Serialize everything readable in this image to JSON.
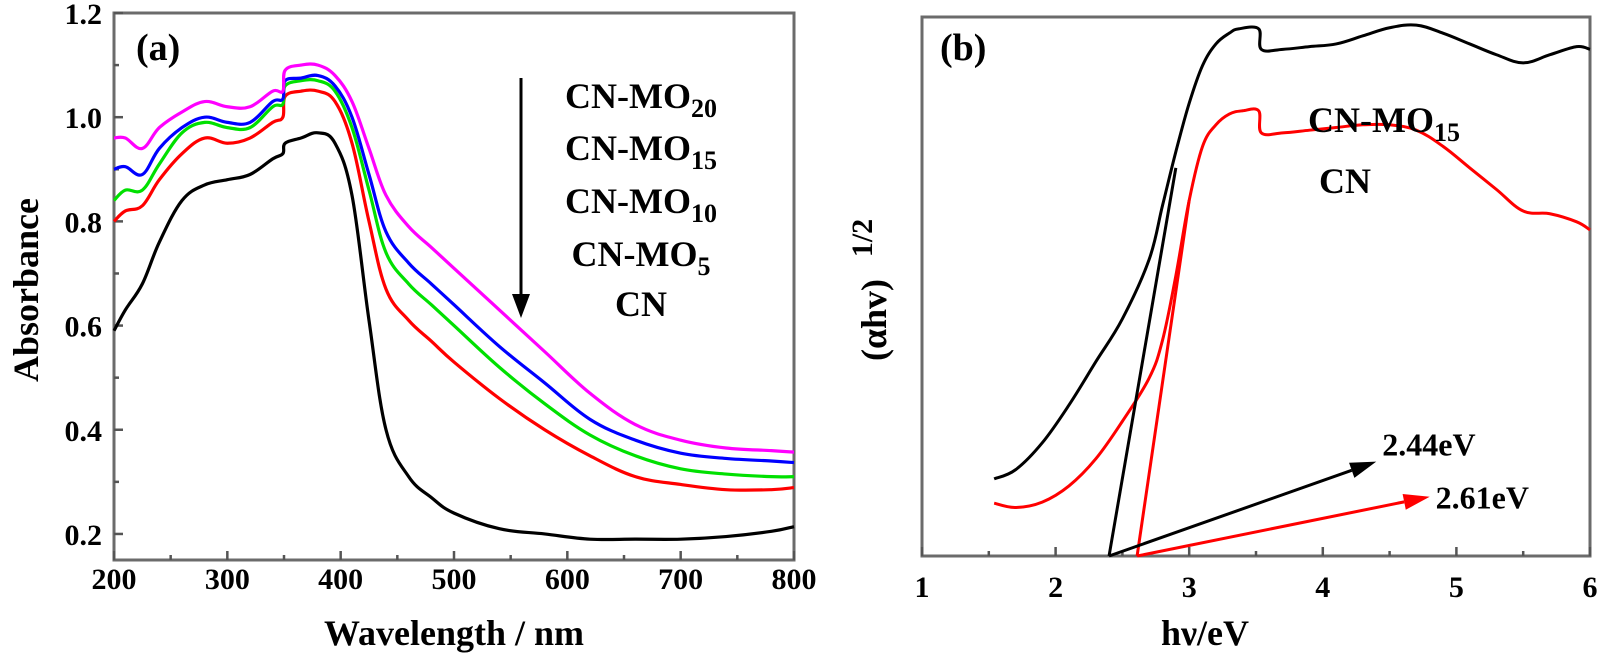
{
  "chart_data": [
    {
      "type": "line",
      "panel_label": "(a)",
      "title": "",
      "xlabel": "Wavelength / nm",
      "ylabel": "Absorbance",
      "xlim": [
        200,
        800
      ],
      "ylim": [
        0.15,
        1.2
      ],
      "xticks": [
        200,
        300,
        400,
        500,
        600,
        700,
        800
      ],
      "xtick_labels": [
        "200",
        "300",
        "400",
        "500",
        "600",
        "700",
        "800"
      ],
      "yticks": [
        0.2,
        0.4,
        0.6,
        0.8,
        1.0,
        1.2
      ],
      "ytick_labels": [
        "0.2",
        "0.4",
        "0.6",
        "0.8",
        "1.0",
        "1.2"
      ],
      "grid": false,
      "legend": {
        "placement": "top-right",
        "entries": [
          {
            "base": "CN-MO",
            "sub": "20"
          },
          {
            "base": "CN-MO",
            "sub": "15"
          },
          {
            "base": "CN-MO",
            "sub": "10"
          },
          {
            "base": "CN-MO",
            "sub": "5"
          },
          {
            "base": "CN",
            "sub": ""
          }
        ],
        "arrow": "down"
      },
      "x": [
        200,
        210,
        225,
        240,
        260,
        280,
        300,
        320,
        340,
        349,
        351,
        365,
        380,
        395,
        410,
        425,
        440,
        460,
        480,
        500,
        540,
        580,
        620,
        660,
        700,
        740,
        780,
        800
      ],
      "series": [
        {
          "name": "CN-MO20",
          "color": "#ff00ff",
          "values": [
            0.96,
            0.96,
            0.94,
            0.98,
            1.01,
            1.03,
            1.02,
            1.02,
            1.05,
            1.05,
            1.09,
            1.1,
            1.1,
            1.08,
            1.03,
            0.94,
            0.85,
            0.79,
            0.75,
            0.71,
            0.63,
            0.55,
            0.47,
            0.41,
            0.38,
            0.365,
            0.36,
            0.357
          ]
        },
        {
          "name": "CN-MO15",
          "color": "#0000ff",
          "values": [
            0.9,
            0.905,
            0.89,
            0.94,
            0.98,
            1.0,
            0.99,
            0.99,
            1.03,
            1.035,
            1.07,
            1.075,
            1.08,
            1.06,
            1.0,
            0.89,
            0.78,
            0.72,
            0.68,
            0.64,
            0.56,
            0.49,
            0.42,
            0.38,
            0.355,
            0.345,
            0.34,
            0.337
          ]
        },
        {
          "name": "CN-MO10",
          "color": "#00e000",
          "values": [
            0.84,
            0.86,
            0.86,
            0.91,
            0.97,
            0.99,
            0.98,
            0.98,
            1.02,
            1.025,
            1.06,
            1.07,
            1.07,
            1.05,
            0.98,
            0.86,
            0.74,
            0.68,
            0.64,
            0.6,
            0.52,
            0.45,
            0.39,
            0.35,
            0.325,
            0.315,
            0.31,
            0.31
          ]
        },
        {
          "name": "CN-MO5",
          "color": "#ff0000",
          "values": [
            0.8,
            0.82,
            0.83,
            0.88,
            0.93,
            0.96,
            0.95,
            0.96,
            0.99,
            1.0,
            1.04,
            1.05,
            1.05,
            1.03,
            0.95,
            0.8,
            0.67,
            0.61,
            0.57,
            0.53,
            0.46,
            0.4,
            0.35,
            0.31,
            0.295,
            0.285,
            0.285,
            0.289
          ]
        },
        {
          "name": "CN",
          "color": "#000000",
          "values": [
            0.59,
            0.63,
            0.68,
            0.76,
            0.84,
            0.87,
            0.88,
            0.89,
            0.92,
            0.93,
            0.95,
            0.96,
            0.97,
            0.95,
            0.85,
            0.61,
            0.4,
            0.31,
            0.27,
            0.24,
            0.21,
            0.2,
            0.19,
            0.19,
            0.19,
            0.195,
            0.205,
            0.214
          ]
        }
      ]
    },
    {
      "type": "line",
      "panel_label": "(b)",
      "title": "",
      "xlabel": "hν/eV",
      "ylabel_base": "(αhv)",
      "ylabel_sup": "1/2",
      "xlim": [
        1,
        6
      ],
      "ylim": [
        0,
        1
      ],
      "xticks": [
        1,
        2,
        3,
        4,
        5,
        6
      ],
      "xtick_labels": [
        "1",
        "2",
        "3",
        "4",
        "5",
        "6"
      ],
      "yticks": [],
      "grid": false,
      "series": [
        {
          "name": "CN-MO15",
          "color": "#000000",
          "label_base": "CN-MO",
          "label_sub": "15",
          "x": [
            1.54,
            1.7,
            1.9,
            2.1,
            2.3,
            2.5,
            2.7,
            2.8,
            2.9,
            3.0,
            3.1,
            3.2,
            3.3,
            3.37,
            3.52,
            3.54,
            3.7,
            3.9,
            4.1,
            4.3,
            4.5,
            4.7,
            4.9,
            5.1,
            5.3,
            5.5,
            5.7,
            5.9,
            6.0
          ],
          "values": [
            0.143,
            0.16,
            0.21,
            0.28,
            0.36,
            0.44,
            0.55,
            0.65,
            0.75,
            0.84,
            0.91,
            0.95,
            0.97,
            0.978,
            0.978,
            0.94,
            0.94,
            0.945,
            0.95,
            0.965,
            0.98,
            0.985,
            0.97,
            0.95,
            0.93,
            0.915,
            0.93,
            0.945,
            0.94
          ]
        },
        {
          "name": "CN",
          "color": "#ff0000",
          "label_base": "CN",
          "label_sub": "",
          "x": [
            1.54,
            1.7,
            1.9,
            2.1,
            2.3,
            2.5,
            2.7,
            2.8,
            2.9,
            3.0,
            3.1,
            3.2,
            3.3,
            3.4,
            3.52,
            3.54,
            3.7,
            3.9,
            4.1,
            4.3,
            4.5,
            4.7,
            4.9,
            5.1,
            5.3,
            5.5,
            5.7,
            5.9,
            6.0
          ],
          "values": [
            0.098,
            0.09,
            0.1,
            0.13,
            0.18,
            0.25,
            0.33,
            0.4,
            0.52,
            0.66,
            0.76,
            0.8,
            0.82,
            0.826,
            0.826,
            0.785,
            0.785,
            0.79,
            0.795,
            0.8,
            0.8,
            0.79,
            0.76,
            0.72,
            0.68,
            0.64,
            0.635,
            0.62,
            0.605
          ]
        }
      ],
      "tangent_lines": [
        {
          "color": "#000000",
          "x": [
            2.4,
            2.9
          ],
          "values": [
            0.0,
            0.72
          ]
        },
        {
          "color": "#ff0000",
          "x": [
            2.61,
            3.0
          ],
          "values": [
            0.0,
            0.66
          ]
        }
      ],
      "annotations": [
        {
          "text": "2.44eV",
          "color": "#000000",
          "arrow_from": [
            2.4,
            0.0
          ],
          "arrow_to": [
            4.4,
            0.175
          ]
        },
        {
          "text": "2.61eV",
          "color": "#ff0000",
          "arrow_from": [
            2.61,
            0.0
          ],
          "arrow_to": [
            4.8,
            0.11
          ]
        }
      ]
    }
  ]
}
